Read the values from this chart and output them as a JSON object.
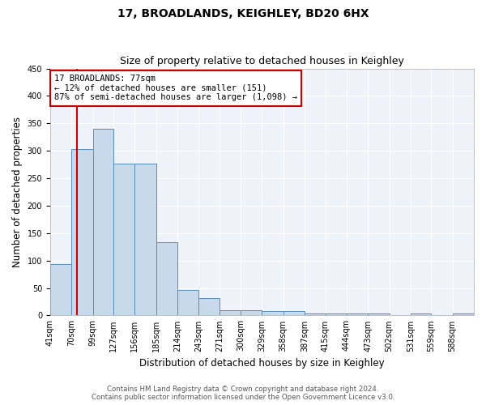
{
  "title": "17, BROADLANDS, KEIGHLEY, BD20 6HX",
  "subtitle": "Size of property relative to detached houses in Keighley",
  "xlabel": "Distribution of detached houses by size in Keighley",
  "ylabel": "Number of detached properties",
  "footer_line1": "Contains HM Land Registry data © Crown copyright and database right 2024.",
  "footer_line2": "Contains public sector information licensed under the Open Government Licence v3.0.",
  "bar_edges": [
    41,
    70,
    99,
    127,
    156,
    185,
    214,
    243,
    271,
    300,
    329,
    358,
    387,
    415,
    444,
    473,
    502,
    531,
    559,
    588,
    617
  ],
  "bar_heights": [
    93,
    303,
    340,
    277,
    277,
    133,
    47,
    31,
    9,
    10,
    8,
    8,
    4,
    4,
    3,
    4,
    0,
    3,
    0,
    3
  ],
  "bar_color": "#c9d9ec",
  "bar_edgecolor": "#5b8db8",
  "subject_value": 77,
  "subject_label": "17 BROADLANDS: 77sqm",
  "annotation_line1": "← 12% of detached houses are smaller (151)",
  "annotation_line2": "87% of semi-detached houses are larger (1,098) →",
  "vline_color": "#cc0000",
  "annotation_box_edgecolor": "#cc0000",
  "ylim": [
    0,
    450
  ],
  "yticks": [
    0,
    50,
    100,
    150,
    200,
    250,
    300,
    350,
    400,
    450
  ],
  "background_color": "#ffffff",
  "plot_background": "#eef2f9",
  "grid_color": "#ffffff",
  "title_fontsize": 10,
  "subtitle_fontsize": 9,
  "label_fontsize": 8.5,
  "tick_fontsize": 7,
  "annotation_fontsize": 7.5
}
